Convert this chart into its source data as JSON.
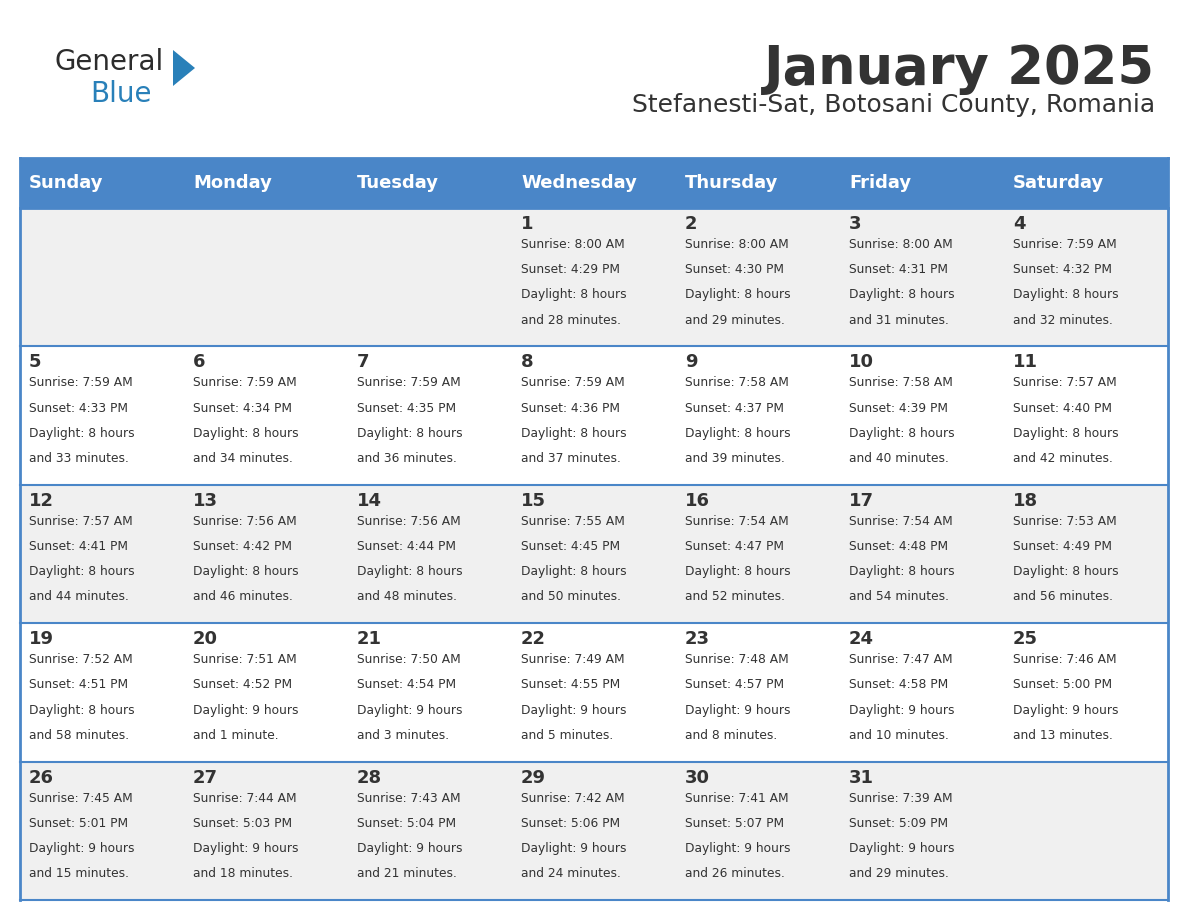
{
  "title": "January 2025",
  "subtitle": "Stefanesti-Sat, Botosani County, Romania",
  "header_bg_color": "#4a86c8",
  "header_text_color": "#ffffff",
  "cell_bg_color_odd": "#f0f0f0",
  "cell_bg_color_even": "#ffffff",
  "border_color": "#4a86c8",
  "text_color": "#333333",
  "days_of_week": [
    "Sunday",
    "Monday",
    "Tuesday",
    "Wednesday",
    "Thursday",
    "Friday",
    "Saturday"
  ],
  "calendar_data": [
    [
      {
        "day": "",
        "sunrise": "",
        "sunset": "",
        "daylight": ""
      },
      {
        "day": "",
        "sunrise": "",
        "sunset": "",
        "daylight": ""
      },
      {
        "day": "",
        "sunrise": "",
        "sunset": "",
        "daylight": ""
      },
      {
        "day": "1",
        "sunrise": "8:00 AM",
        "sunset": "4:29 PM",
        "daylight": "8 hours and 28 minutes."
      },
      {
        "day": "2",
        "sunrise": "8:00 AM",
        "sunset": "4:30 PM",
        "daylight": "8 hours and 29 minutes."
      },
      {
        "day": "3",
        "sunrise": "8:00 AM",
        "sunset": "4:31 PM",
        "daylight": "8 hours and 31 minutes."
      },
      {
        "day": "4",
        "sunrise": "7:59 AM",
        "sunset": "4:32 PM",
        "daylight": "8 hours and 32 minutes."
      }
    ],
    [
      {
        "day": "5",
        "sunrise": "7:59 AM",
        "sunset": "4:33 PM",
        "daylight": "8 hours and 33 minutes."
      },
      {
        "day": "6",
        "sunrise": "7:59 AM",
        "sunset": "4:34 PM",
        "daylight": "8 hours and 34 minutes."
      },
      {
        "day": "7",
        "sunrise": "7:59 AM",
        "sunset": "4:35 PM",
        "daylight": "8 hours and 36 minutes."
      },
      {
        "day": "8",
        "sunrise": "7:59 AM",
        "sunset": "4:36 PM",
        "daylight": "8 hours and 37 minutes."
      },
      {
        "day": "9",
        "sunrise": "7:58 AM",
        "sunset": "4:37 PM",
        "daylight": "8 hours and 39 minutes."
      },
      {
        "day": "10",
        "sunrise": "7:58 AM",
        "sunset": "4:39 PM",
        "daylight": "8 hours and 40 minutes."
      },
      {
        "day": "11",
        "sunrise": "7:57 AM",
        "sunset": "4:40 PM",
        "daylight": "8 hours and 42 minutes."
      }
    ],
    [
      {
        "day": "12",
        "sunrise": "7:57 AM",
        "sunset": "4:41 PM",
        "daylight": "8 hours and 44 minutes."
      },
      {
        "day": "13",
        "sunrise": "7:56 AM",
        "sunset": "4:42 PM",
        "daylight": "8 hours and 46 minutes."
      },
      {
        "day": "14",
        "sunrise": "7:56 AM",
        "sunset": "4:44 PM",
        "daylight": "8 hours and 48 minutes."
      },
      {
        "day": "15",
        "sunrise": "7:55 AM",
        "sunset": "4:45 PM",
        "daylight": "8 hours and 50 minutes."
      },
      {
        "day": "16",
        "sunrise": "7:54 AM",
        "sunset": "4:47 PM",
        "daylight": "8 hours and 52 minutes."
      },
      {
        "day": "17",
        "sunrise": "7:54 AM",
        "sunset": "4:48 PM",
        "daylight": "8 hours and 54 minutes."
      },
      {
        "day": "18",
        "sunrise": "7:53 AM",
        "sunset": "4:49 PM",
        "daylight": "8 hours and 56 minutes."
      }
    ],
    [
      {
        "day": "19",
        "sunrise": "7:52 AM",
        "sunset": "4:51 PM",
        "daylight": "8 hours and 58 minutes."
      },
      {
        "day": "20",
        "sunrise": "7:51 AM",
        "sunset": "4:52 PM",
        "daylight": "9 hours and 1 minute."
      },
      {
        "day": "21",
        "sunrise": "7:50 AM",
        "sunset": "4:54 PM",
        "daylight": "9 hours and 3 minutes."
      },
      {
        "day": "22",
        "sunrise": "7:49 AM",
        "sunset": "4:55 PM",
        "daylight": "9 hours and 5 minutes."
      },
      {
        "day": "23",
        "sunrise": "7:48 AM",
        "sunset": "4:57 PM",
        "daylight": "9 hours and 8 minutes."
      },
      {
        "day": "24",
        "sunrise": "7:47 AM",
        "sunset": "4:58 PM",
        "daylight": "9 hours and 10 minutes."
      },
      {
        "day": "25",
        "sunrise": "7:46 AM",
        "sunset": "5:00 PM",
        "daylight": "9 hours and 13 minutes."
      }
    ],
    [
      {
        "day": "26",
        "sunrise": "7:45 AM",
        "sunset": "5:01 PM",
        "daylight": "9 hours and 15 minutes."
      },
      {
        "day": "27",
        "sunrise": "7:44 AM",
        "sunset": "5:03 PM",
        "daylight": "9 hours and 18 minutes."
      },
      {
        "day": "28",
        "sunrise": "7:43 AM",
        "sunset": "5:04 PM",
        "daylight": "9 hours and 21 minutes."
      },
      {
        "day": "29",
        "sunrise": "7:42 AM",
        "sunset": "5:06 PM",
        "daylight": "9 hours and 24 minutes."
      },
      {
        "day": "30",
        "sunrise": "7:41 AM",
        "sunset": "5:07 PM",
        "daylight": "9 hours and 26 minutes."
      },
      {
        "day": "31",
        "sunrise": "7:39 AM",
        "sunset": "5:09 PM",
        "daylight": "9 hours and 29 minutes."
      },
      {
        "day": "",
        "sunrise": "",
        "sunset": "",
        "daylight": ""
      }
    ]
  ],
  "logo_general_color": "#2c2c2c",
  "logo_blue_color": "#2980b9",
  "logo_triangle_color": "#2980b9"
}
